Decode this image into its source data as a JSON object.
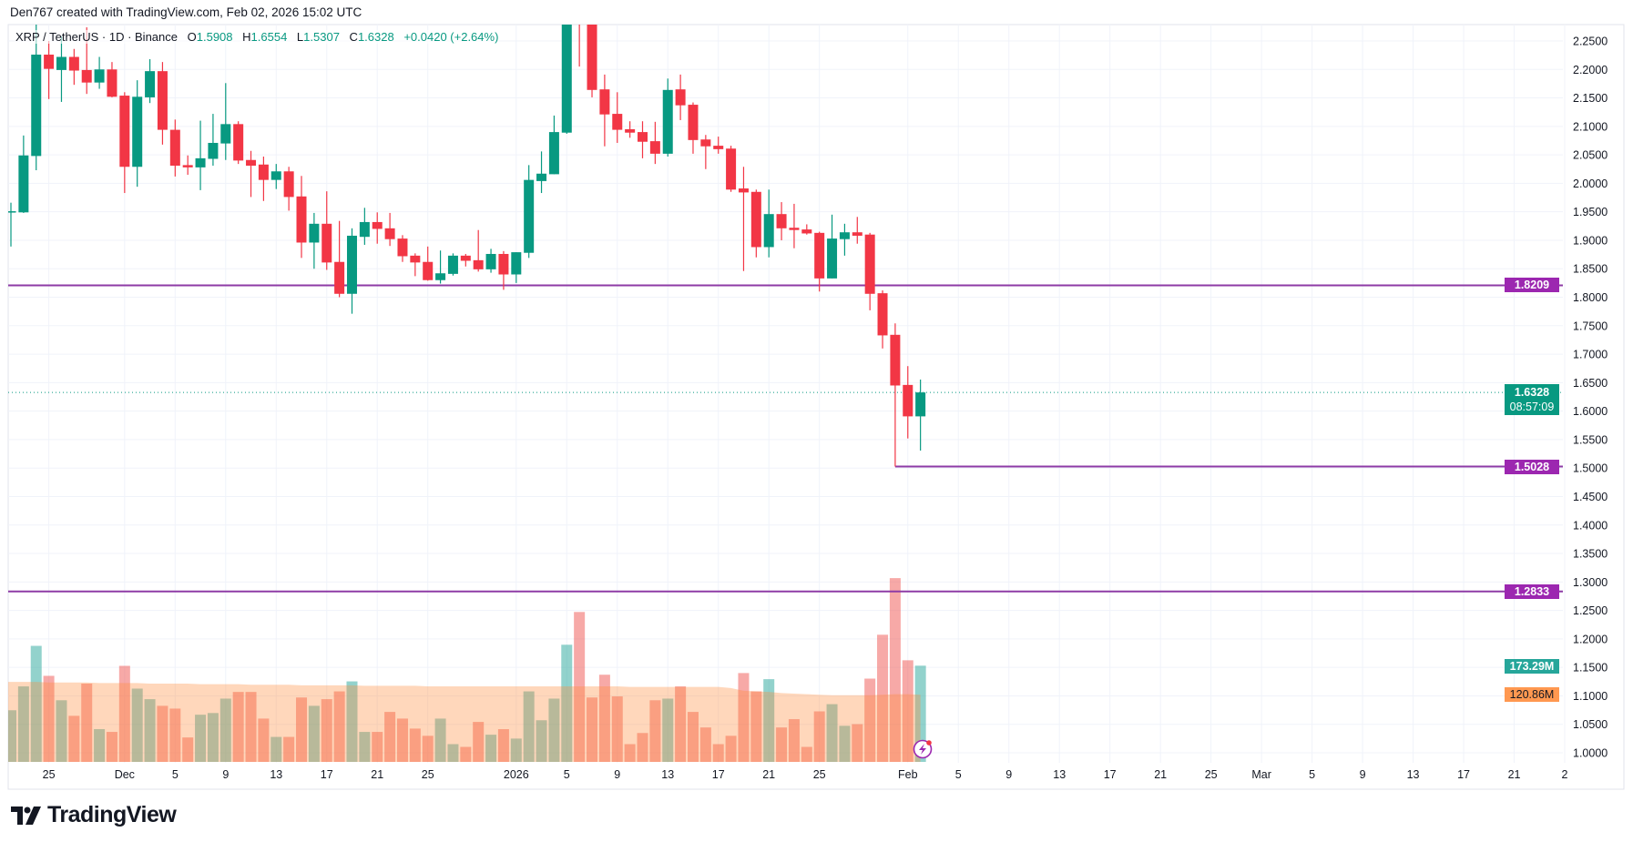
{
  "credit": "Den767 created with TradingView.com, Feb 02, 2026 15:02 UTC",
  "legend": {
    "symbol": "XRP / TetherUS · 1D · Binance",
    "o_label": "O",
    "o_value": "1.5908",
    "h_label": "H",
    "h_value": "1.6554",
    "l_label": "L",
    "l_value": "1.5307",
    "c_label": "C",
    "c_value": "1.6328",
    "change": "+0.0420 (+2.64%)"
  },
  "badges": {
    "level_1": "1.8209",
    "level_2": "1.5028",
    "level_3": "1.2833",
    "last_price": "1.6328",
    "countdown": "08:57:09",
    "volume": "173.29M",
    "volume_ma": "120.86M"
  },
  "logo": {
    "text": "TradingView"
  },
  "colors": {
    "up": "#089981",
    "down": "#f23645",
    "volume_up": "rgba(38,166,154,0.5)",
    "volume_down": "rgba(239,83,80,0.5)",
    "volume_ma_fill": "rgba(255,140,60,0.35)",
    "level_line": "#8e3ba6",
    "badge_purple": "#9c27b0",
    "grid": "#f0f3fa",
    "text": "#131722"
  },
  "chart_data": {
    "type": "candlestick",
    "interval": "1D",
    "y_axis": {
      "range": [
        1.0,
        2.25
      ],
      "ticks": [
        "2.2500",
        "2.2000",
        "2.1500",
        "2.1000",
        "2.0500",
        "2.0000",
        "1.9500",
        "1.9000",
        "1.8500",
        "1.8000",
        "1.7500",
        "1.7000",
        "1.6500",
        "1.6000",
        "1.5500",
        "1.5000",
        "1.4500",
        "1.4000",
        "1.3500",
        "1.3000",
        "1.2500",
        "1.2000",
        "1.1500",
        "1.1000",
        "1.0500",
        "1.0000"
      ]
    },
    "x_axis": {
      "ticks": [
        {
          "label": "25",
          "date": "2025-11-25"
        },
        {
          "label": "Dec",
          "date": "2025-12-01"
        },
        {
          "label": "5",
          "date": "2025-12-05"
        },
        {
          "label": "9",
          "date": "2025-12-09"
        },
        {
          "label": "13",
          "date": "2025-12-13"
        },
        {
          "label": "17",
          "date": "2025-12-17"
        },
        {
          "label": "21",
          "date": "2025-12-21"
        },
        {
          "label": "25",
          "date": "2025-12-25"
        },
        {
          "label": "2026",
          "date": "2026-01-01"
        },
        {
          "label": "5",
          "date": "2026-01-05"
        },
        {
          "label": "9",
          "date": "2026-01-09"
        },
        {
          "label": "13",
          "date": "2026-01-13"
        },
        {
          "label": "17",
          "date": "2026-01-17"
        },
        {
          "label": "21",
          "date": "2026-01-21"
        },
        {
          "label": "25",
          "date": "2026-01-25"
        },
        {
          "label": "Feb",
          "date": "2026-02-01"
        },
        {
          "label": "5",
          "date": "2026-02-05"
        },
        {
          "label": "9",
          "date": "2026-02-09"
        },
        {
          "label": "13",
          "date": "2026-02-13"
        },
        {
          "label": "17",
          "date": "2026-02-17"
        },
        {
          "label": "21",
          "date": "2026-02-21"
        },
        {
          "label": "25",
          "date": "2026-02-25"
        },
        {
          "label": "Mar",
          "date": "2026-03-01"
        },
        {
          "label": "5",
          "date": "2026-03-05"
        },
        {
          "label": "9",
          "date": "2026-03-09"
        },
        {
          "label": "13",
          "date": "2026-03-13"
        },
        {
          "label": "17",
          "date": "2026-03-17"
        },
        {
          "label": "21",
          "date": "2026-03-21"
        },
        {
          "label": "2",
          "date": "2026-03-25"
        }
      ]
    },
    "grid": true,
    "start_date": "2025-11-22",
    "ohlc": [
      [
        1.95,
        1.966,
        1.889,
        1.951
      ],
      [
        1.949,
        2.084,
        1.948,
        2.049
      ],
      [
        2.048,
        2.279,
        2.023,
        2.226
      ],
      [
        2.226,
        2.25,
        2.148,
        2.201
      ],
      [
        2.199,
        2.258,
        2.143,
        2.222
      ],
      [
        2.222,
        2.236,
        2.173,
        2.198
      ],
      [
        2.199,
        2.274,
        2.157,
        2.177
      ],
      [
        2.177,
        2.222,
        2.166,
        2.2
      ],
      [
        2.2,
        2.213,
        2.151,
        2.152
      ],
      [
        2.154,
        2.16,
        1.983,
        2.029
      ],
      [
        2.029,
        2.181,
        1.994,
        2.152
      ],
      [
        2.151,
        2.218,
        2.141,
        2.197
      ],
      [
        2.197,
        2.213,
        2.068,
        2.094
      ],
      [
        2.094,
        2.112,
        2.012,
        2.031
      ],
      [
        2.032,
        2.049,
        2.015,
        2.028
      ],
      [
        2.028,
        2.11,
        1.988,
        2.044
      ],
      [
        2.043,
        2.122,
        2.031,
        2.071
      ],
      [
        2.07,
        2.176,
        2.041,
        2.104
      ],
      [
        2.104,
        2.109,
        2.034,
        2.04
      ],
      [
        2.041,
        2.057,
        1.976,
        2.031
      ],
      [
        2.033,
        2.047,
        1.969,
        2.006
      ],
      [
        2.006,
        2.034,
        1.99,
        2.021
      ],
      [
        2.021,
        2.029,
        1.952,
        1.976
      ],
      [
        1.977,
        2.013,
        1.869,
        1.896
      ],
      [
        1.896,
        1.948,
        1.85,
        1.929
      ],
      [
        1.929,
        1.986,
        1.848,
        1.861
      ],
      [
        1.862,
        1.934,
        1.8,
        1.806
      ],
      [
        1.806,
        1.921,
        1.771,
        1.908
      ],
      [
        1.906,
        1.957,
        1.892,
        1.932
      ],
      [
        1.932,
        1.949,
        1.894,
        1.92
      ],
      [
        1.921,
        1.948,
        1.89,
        1.902
      ],
      [
        1.903,
        1.909,
        1.862,
        1.872
      ],
      [
        1.873,
        1.877,
        1.837,
        1.861
      ],
      [
        1.862,
        1.889,
        1.829,
        1.83
      ],
      [
        1.83,
        1.882,
        1.824,
        1.842
      ],
      [
        1.841,
        1.877,
        1.838,
        1.873
      ],
      [
        1.873,
        1.876,
        1.854,
        1.864
      ],
      [
        1.865,
        1.918,
        1.845,
        1.849
      ],
      [
        1.849,
        1.885,
        1.843,
        1.876
      ],
      [
        1.876,
        1.881,
        1.813,
        1.84
      ],
      [
        1.84,
        1.879,
        1.825,
        1.879
      ],
      [
        1.878,
        2.032,
        1.869,
        2.006
      ],
      [
        2.004,
        2.056,
        1.983,
        2.017
      ],
      [
        2.016,
        2.119,
        2.016,
        2.09
      ],
      [
        2.089,
        2.42,
        2.087,
        2.4
      ],
      [
        2.4,
        2.5,
        2.205,
        2.3
      ],
      [
        2.3,
        2.33,
        2.151,
        2.164
      ],
      [
        2.165,
        2.191,
        2.065,
        2.121
      ],
      [
        2.122,
        2.16,
        2.071,
        2.094
      ],
      [
        2.095,
        2.109,
        2.08,
        2.089
      ],
      [
        2.09,
        2.109,
        2.044,
        2.073
      ],
      [
        2.074,
        2.108,
        2.034,
        2.052
      ],
      [
        2.052,
        2.184,
        2.047,
        2.164
      ],
      [
        2.165,
        2.191,
        2.111,
        2.137
      ],
      [
        2.138,
        2.142,
        2.052,
        2.076
      ],
      [
        2.077,
        2.085,
        2.025,
        2.065
      ],
      [
        2.066,
        2.082,
        2.052,
        2.06
      ],
      [
        2.061,
        2.066,
        1.985,
        1.989
      ],
      [
        1.991,
        2.029,
        1.846,
        1.984
      ],
      [
        1.985,
        1.989,
        1.87,
        1.888
      ],
      [
        1.888,
        1.989,
        1.87,
        1.946
      ],
      [
        1.946,
        1.967,
        1.9,
        1.921
      ],
      [
        1.922,
        1.964,
        1.886,
        1.918
      ],
      [
        1.919,
        1.928,
        1.91,
        1.912
      ],
      [
        1.913,
        1.915,
        1.81,
        1.833
      ],
      [
        1.833,
        1.945,
        1.833,
        1.903
      ],
      [
        1.902,
        1.929,
        1.873,
        1.914
      ],
      [
        1.914,
        1.941,
        1.894,
        1.908
      ],
      [
        1.91,
        1.913,
        1.777,
        1.806
      ],
      [
        1.807,
        1.812,
        1.71,
        1.733
      ],
      [
        1.734,
        1.754,
        1.5028,
        1.645
      ],
      [
        1.646,
        1.679,
        1.552,
        1.5908
      ],
      [
        1.5908,
        1.6554,
        1.5307,
        1.6328
      ]
    ],
    "volume_millions": [
      93,
      136,
      209,
      155,
      111,
      83,
      141,
      59,
      54,
      173,
      132,
      113,
      101,
      96,
      44,
      85,
      88,
      114,
      126,
      126,
      78,
      45,
      45,
      116,
      101,
      113,
      127,
      145,
      54,
      54,
      90,
      78,
      60,
      47,
      78,
      32,
      27,
      72,
      49,
      59,
      42,
      127,
      75,
      114,
      211,
      270,
      116,
      157,
      118,
      32,
      52,
      111,
      114,
      136,
      90,
      62,
      32,
      47,
      160,
      127,
      149,
      62,
      77,
      27,
      91,
      104,
      65,
      68,
      150,
      229,
      331,
      183,
      173.29
    ],
    "volume_ma_millions": [
      144,
      144,
      144,
      143,
      143,
      143,
      143,
      142,
      142,
      142,
      142,
      141,
      141,
      141,
      141,
      140,
      140,
      140,
      140,
      139,
      139,
      139,
      139,
      138,
      138,
      138,
      138,
      138,
      137,
      137,
      137,
      137,
      137,
      136,
      136,
      136,
      136,
      136,
      136,
      136,
      136,
      136,
      136,
      136,
      136,
      136,
      136,
      136,
      136,
      135,
      135,
      135,
      135,
      135,
      135,
      135,
      135,
      133,
      128,
      127,
      126,
      124,
      123,
      122,
      121,
      120,
      120,
      120,
      120,
      121,
      122,
      122,
      120.86
    ],
    "horizontal_levels": [
      {
        "price": 1.8209,
        "from": "full"
      },
      {
        "price": 1.5028,
        "from_date": "2026-01-31"
      },
      {
        "price": 1.2833,
        "from": "full"
      }
    ],
    "last_price": 1.6328
  }
}
